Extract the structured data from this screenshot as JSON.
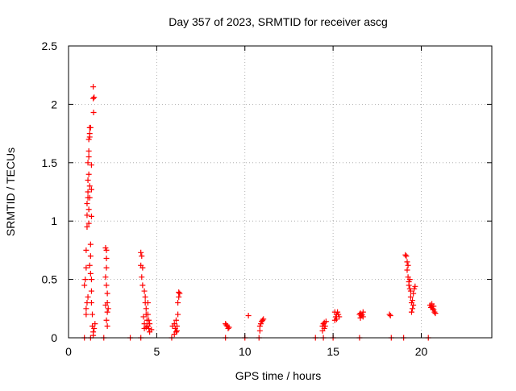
{
  "chart_data": {
    "type": "scatter",
    "title": "Day 357 of 2023, SRMTID for receiver ascg",
    "xlabel": "GPS time / hours",
    "ylabel": "SRMTID / TECUs",
    "xlim": [
      0,
      24
    ],
    "ylim": [
      0,
      2.5
    ],
    "xticks": [
      0,
      5,
      10,
      15,
      20
    ],
    "yticks": [
      0,
      0.5,
      1,
      1.5,
      2,
      2.5
    ],
    "ytick_labels": [
      "0",
      "0.5",
      "1",
      "1.5",
      "2",
      "2.5"
    ],
    "grid": true,
    "marker": "plus",
    "color": "#ff0000",
    "series": [
      {
        "name": "SRMTID",
        "points": [
          [
            0.9,
            0.45
          ],
          [
            0.95,
            0.5
          ],
          [
            1.0,
            0.6
          ],
          [
            1.0,
            0.75
          ],
          [
            1.05,
            0.95
          ],
          [
            1.05,
            1.05
          ],
          [
            1.05,
            1.15
          ],
          [
            1.1,
            1.2
          ],
          [
            1.1,
            1.25
          ],
          [
            1.1,
            1.35
          ],
          [
            1.1,
            1.5
          ],
          [
            1.15,
            1.55
          ],
          [
            1.15,
            1.6
          ],
          [
            1.15,
            1.7
          ],
          [
            1.2,
            1.75
          ],
          [
            1.2,
            1.8
          ],
          [
            1.25,
            1.8
          ],
          [
            1.2,
            1.72
          ],
          [
            1.15,
            1.4
          ],
          [
            1.2,
            1.3
          ],
          [
            1.2,
            1.2
          ],
          [
            1.15,
            1.1
          ],
          [
            1.15,
            0.98
          ],
          [
            1.2,
            0.62
          ],
          [
            1.25,
            0.55
          ],
          [
            1.3,
            0.5
          ],
          [
            1.3,
            0.4
          ],
          [
            1.3,
            0.3
          ],
          [
            1.35,
            0.2
          ],
          [
            1.35,
            0.1
          ],
          [
            1.4,
            0.05
          ],
          [
            1.4,
            0.02
          ],
          [
            1.4,
            2.05
          ],
          [
            1.45,
            2.06
          ],
          [
            1.4,
            2.15
          ],
          [
            1.42,
            1.93
          ],
          [
            1.3,
            1.48
          ],
          [
            1.3,
            1.27
          ],
          [
            1.3,
            1.04
          ],
          [
            1.05,
            0.3
          ],
          [
            1.0,
            0.25
          ],
          [
            1.0,
            0.2
          ],
          [
            1.1,
            0.35
          ],
          [
            1.25,
            0.7
          ],
          [
            1.25,
            0.8
          ],
          [
            1.5,
            0.12
          ],
          [
            1.45,
            0.08
          ],
          [
            0.9,
            0.0
          ],
          [
            1.25,
            0.0
          ],
          [
            2.1,
            0.77
          ],
          [
            2.15,
            0.75
          ],
          [
            2.15,
            0.68
          ],
          [
            2.15,
            0.6
          ],
          [
            2.1,
            0.52
          ],
          [
            2.15,
            0.45
          ],
          [
            2.2,
            0.38
          ],
          [
            2.2,
            0.3
          ],
          [
            2.25,
            0.25
          ],
          [
            2.1,
            0.28
          ],
          [
            2.2,
            0.22
          ],
          [
            2.15,
            0.15
          ],
          [
            2.2,
            0.1
          ],
          [
            2.0,
            0.0
          ],
          [
            4.1,
            0.73
          ],
          [
            4.15,
            0.7
          ],
          [
            4.1,
            0.62
          ],
          [
            4.2,
            0.6
          ],
          [
            4.15,
            0.52
          ],
          [
            4.2,
            0.45
          ],
          [
            4.3,
            0.4
          ],
          [
            4.35,
            0.35
          ],
          [
            4.35,
            0.3
          ],
          [
            4.4,
            0.25
          ],
          [
            4.4,
            0.2
          ],
          [
            4.45,
            0.15
          ],
          [
            4.5,
            0.1
          ],
          [
            4.55,
            0.08
          ],
          [
            4.6,
            0.05
          ],
          [
            4.25,
            0.18
          ],
          [
            4.3,
            0.12
          ],
          [
            4.4,
            0.09
          ],
          [
            4.5,
            0.2
          ],
          [
            4.5,
            0.3
          ],
          [
            4.55,
            0.15
          ],
          [
            4.6,
            0.12
          ],
          [
            4.7,
            0.07
          ],
          [
            4.3,
            0.08
          ],
          [
            4.1,
            0.0
          ],
          [
            3.5,
            0.0
          ],
          [
            5.9,
            0.1
          ],
          [
            6.0,
            0.12
          ],
          [
            6.05,
            0.08
          ],
          [
            6.1,
            0.15
          ],
          [
            6.15,
            0.1
          ],
          [
            6.2,
            0.2
          ],
          [
            6.2,
            0.3
          ],
          [
            6.25,
            0.35
          ],
          [
            6.25,
            0.39
          ],
          [
            6.3,
            0.38
          ],
          [
            6.1,
            0.05
          ],
          [
            5.85,
            0.0
          ],
          [
            6.0,
            0.03
          ],
          [
            6.15,
            0.06
          ],
          [
            8.9,
            0.12
          ],
          [
            8.95,
            0.11
          ],
          [
            9.0,
            0.1
          ],
          [
            9.05,
            0.08
          ],
          [
            9.1,
            0.09
          ],
          [
            8.9,
            0.0
          ],
          [
            10.2,
            0.19
          ],
          [
            10.0,
            0.0
          ],
          [
            10.85,
            0.1
          ],
          [
            10.9,
            0.12
          ],
          [
            10.95,
            0.14
          ],
          [
            11.0,
            0.15
          ],
          [
            11.05,
            0.16
          ],
          [
            10.85,
            0.06
          ],
          [
            10.8,
            0.0
          ],
          [
            14.0,
            0.0
          ],
          [
            14.4,
            0.1
          ],
          [
            14.45,
            0.12
          ],
          [
            14.5,
            0.13
          ],
          [
            14.55,
            0.1
          ],
          [
            14.6,
            0.14
          ],
          [
            14.4,
            0.06
          ],
          [
            14.45,
            0.0
          ],
          [
            14.5,
            0.08
          ],
          [
            15.1,
            0.15
          ],
          [
            15.15,
            0.18
          ],
          [
            15.2,
            0.2
          ],
          [
            15.25,
            0.22
          ],
          [
            15.3,
            0.2
          ],
          [
            15.35,
            0.18
          ],
          [
            15.2,
            0.16
          ],
          [
            15.1,
            0.22
          ],
          [
            15.0,
            0.0
          ],
          [
            16.5,
            0.2
          ],
          [
            16.55,
            0.21
          ],
          [
            16.6,
            0.19
          ],
          [
            16.65,
            0.2
          ],
          [
            16.7,
            0.18
          ],
          [
            16.55,
            0.17
          ],
          [
            16.7,
            0.22
          ],
          [
            16.5,
            0.0
          ],
          [
            18.2,
            0.2
          ],
          [
            18.25,
            0.19
          ],
          [
            18.3,
            0.0
          ],
          [
            19.1,
            0.71
          ],
          [
            19.15,
            0.7
          ],
          [
            19.2,
            0.65
          ],
          [
            19.2,
            0.58
          ],
          [
            19.25,
            0.52
          ],
          [
            19.3,
            0.48
          ],
          [
            19.3,
            0.45
          ],
          [
            19.35,
            0.42
          ],
          [
            19.4,
            0.4
          ],
          [
            19.4,
            0.35
          ],
          [
            19.45,
            0.3
          ],
          [
            19.5,
            0.25
          ],
          [
            19.5,
            0.32
          ],
          [
            19.55,
            0.38
          ],
          [
            19.6,
            0.42
          ],
          [
            19.65,
            0.44
          ],
          [
            19.55,
            0.28
          ],
          [
            19.45,
            0.22
          ],
          [
            19.35,
            0.5
          ],
          [
            19.25,
            0.62
          ],
          [
            19.0,
            0.0
          ],
          [
            20.5,
            0.28
          ],
          [
            20.55,
            0.26
          ],
          [
            20.6,
            0.27
          ],
          [
            20.65,
            0.25
          ],
          [
            20.7,
            0.24
          ],
          [
            20.75,
            0.22
          ],
          [
            20.6,
            0.29
          ],
          [
            20.8,
            0.21
          ],
          [
            20.7,
            0.27
          ],
          [
            20.4,
            0.0
          ]
        ]
      }
    ]
  }
}
